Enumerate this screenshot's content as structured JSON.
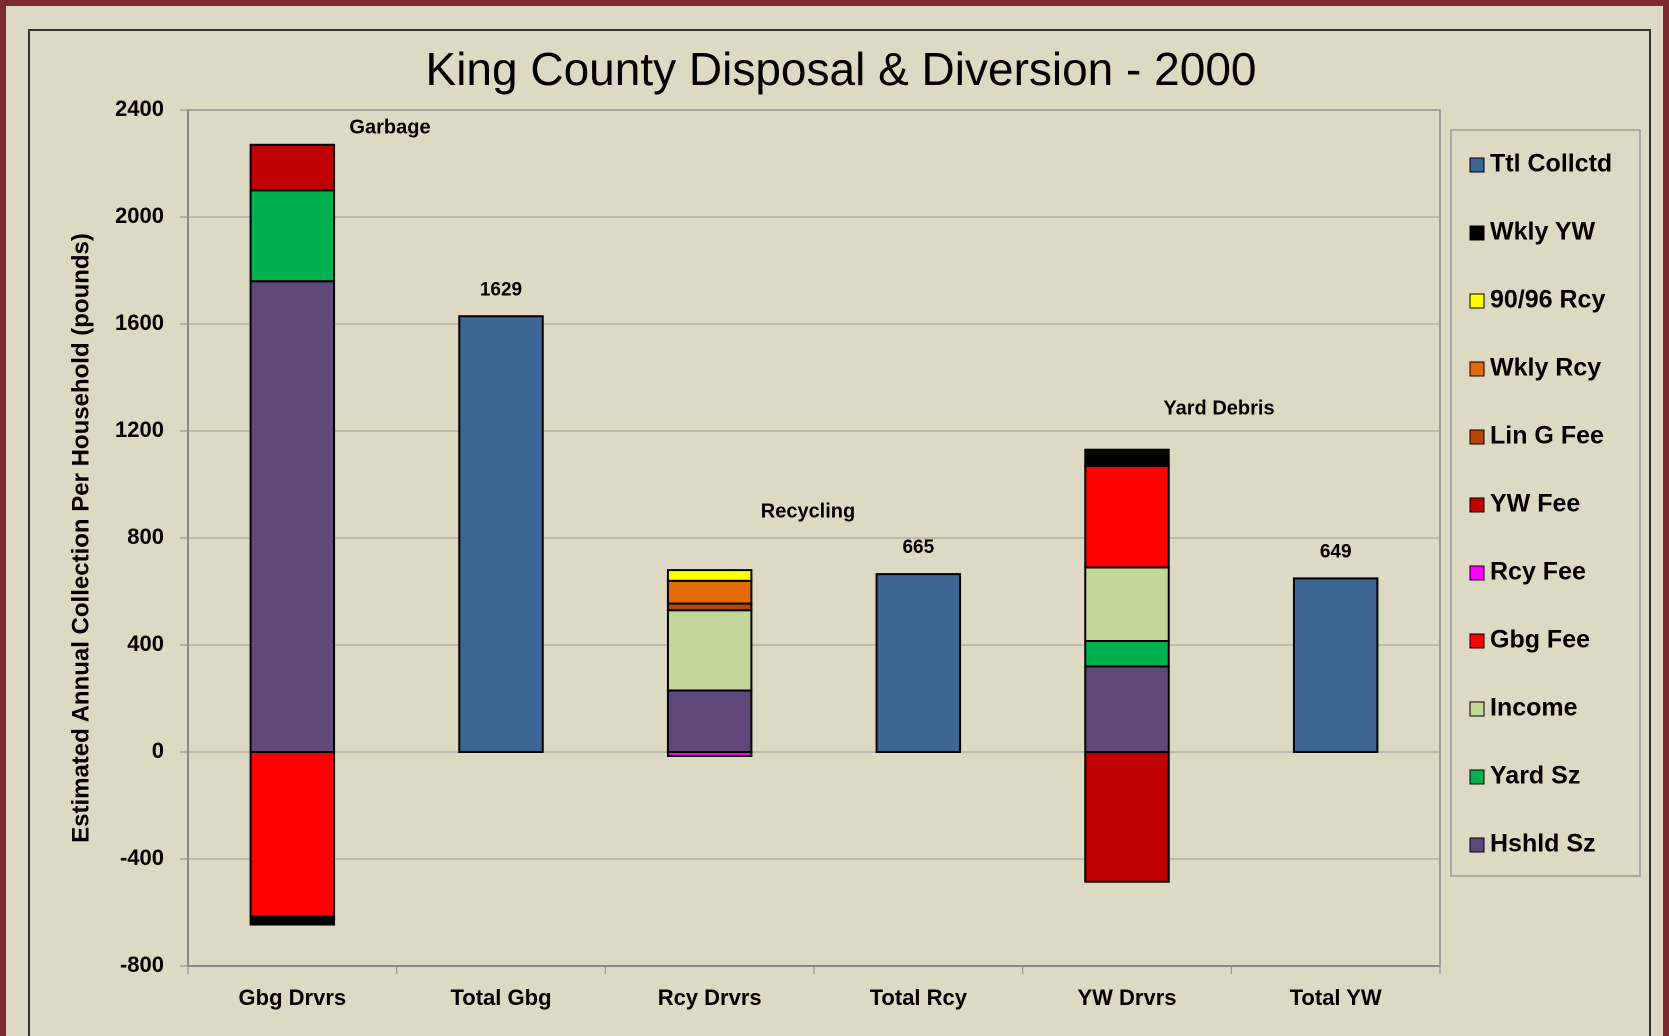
{
  "chart_data": {
    "type": "stacked_bar",
    "title": "King County Disposal & Diversion - 2000",
    "y_label": "Estimated Annual Collection Per Household (pounds)",
    "categories": [
      "Gbg Drvrs",
      "Total Gbg",
      "Rcy Drvrs",
      "Total Rcy",
      "YW Drvrs",
      "Total YW"
    ],
    "ylim": [
      -800,
      2400
    ],
    "yticks": [
      -800,
      -400,
      0,
      400,
      800,
      1200,
      1600,
      2000,
      2400
    ],
    "grid": true,
    "legend": "right",
    "annotations": [
      "Garbage",
      "Recycling",
      "Yard Debris"
    ],
    "series": [
      {
        "name": "Ttl Collctd",
        "color": "#3d6595",
        "values": [
          null,
          1629,
          null,
          665,
          null,
          649
        ]
      },
      {
        "name": "Wkly YW",
        "color": "#000000",
        "values": [
          -30,
          null,
          null,
          null,
          60,
          null
        ]
      },
      {
        "name": "90/96 Rcy",
        "color": "#ffff00",
        "values": [
          null,
          null,
          40,
          null,
          null,
          null
        ]
      },
      {
        "name": "Wkly Rcy",
        "color": "#e36c09",
        "values": [
          null,
          null,
          85,
          null,
          null,
          null
        ]
      },
      {
        "name": "Lin G Fee",
        "color": "#b5470c",
        "values": [
          null,
          null,
          25,
          null,
          null,
          null
        ]
      },
      {
        "name": "YW Fee",
        "color": "#c00000",
        "values": [
          170,
          null,
          null,
          null,
          -485,
          null
        ]
      },
      {
        "name": "Rcy Fee",
        "color": "#ff00ff",
        "values": [
          null,
          null,
          -15,
          null,
          null,
          null
        ]
      },
      {
        "name": "Gbg Fee",
        "color": "#ff0000",
        "values": [
          -615,
          null,
          null,
          null,
          380,
          null
        ]
      },
      {
        "name": "Income",
        "color": "#c4d79b",
        "values": [
          null,
          null,
          300,
          null,
          275,
          null
        ]
      },
      {
        "name": "Yard Sz",
        "color": "#00b050",
        "values": [
          340,
          null,
          null,
          null,
          95,
          null
        ]
      },
      {
        "name": "Hshld Sz",
        "color": "#60497a",
        "values": [
          1760,
          null,
          230,
          null,
          320,
          null
        ]
      }
    ]
  }
}
